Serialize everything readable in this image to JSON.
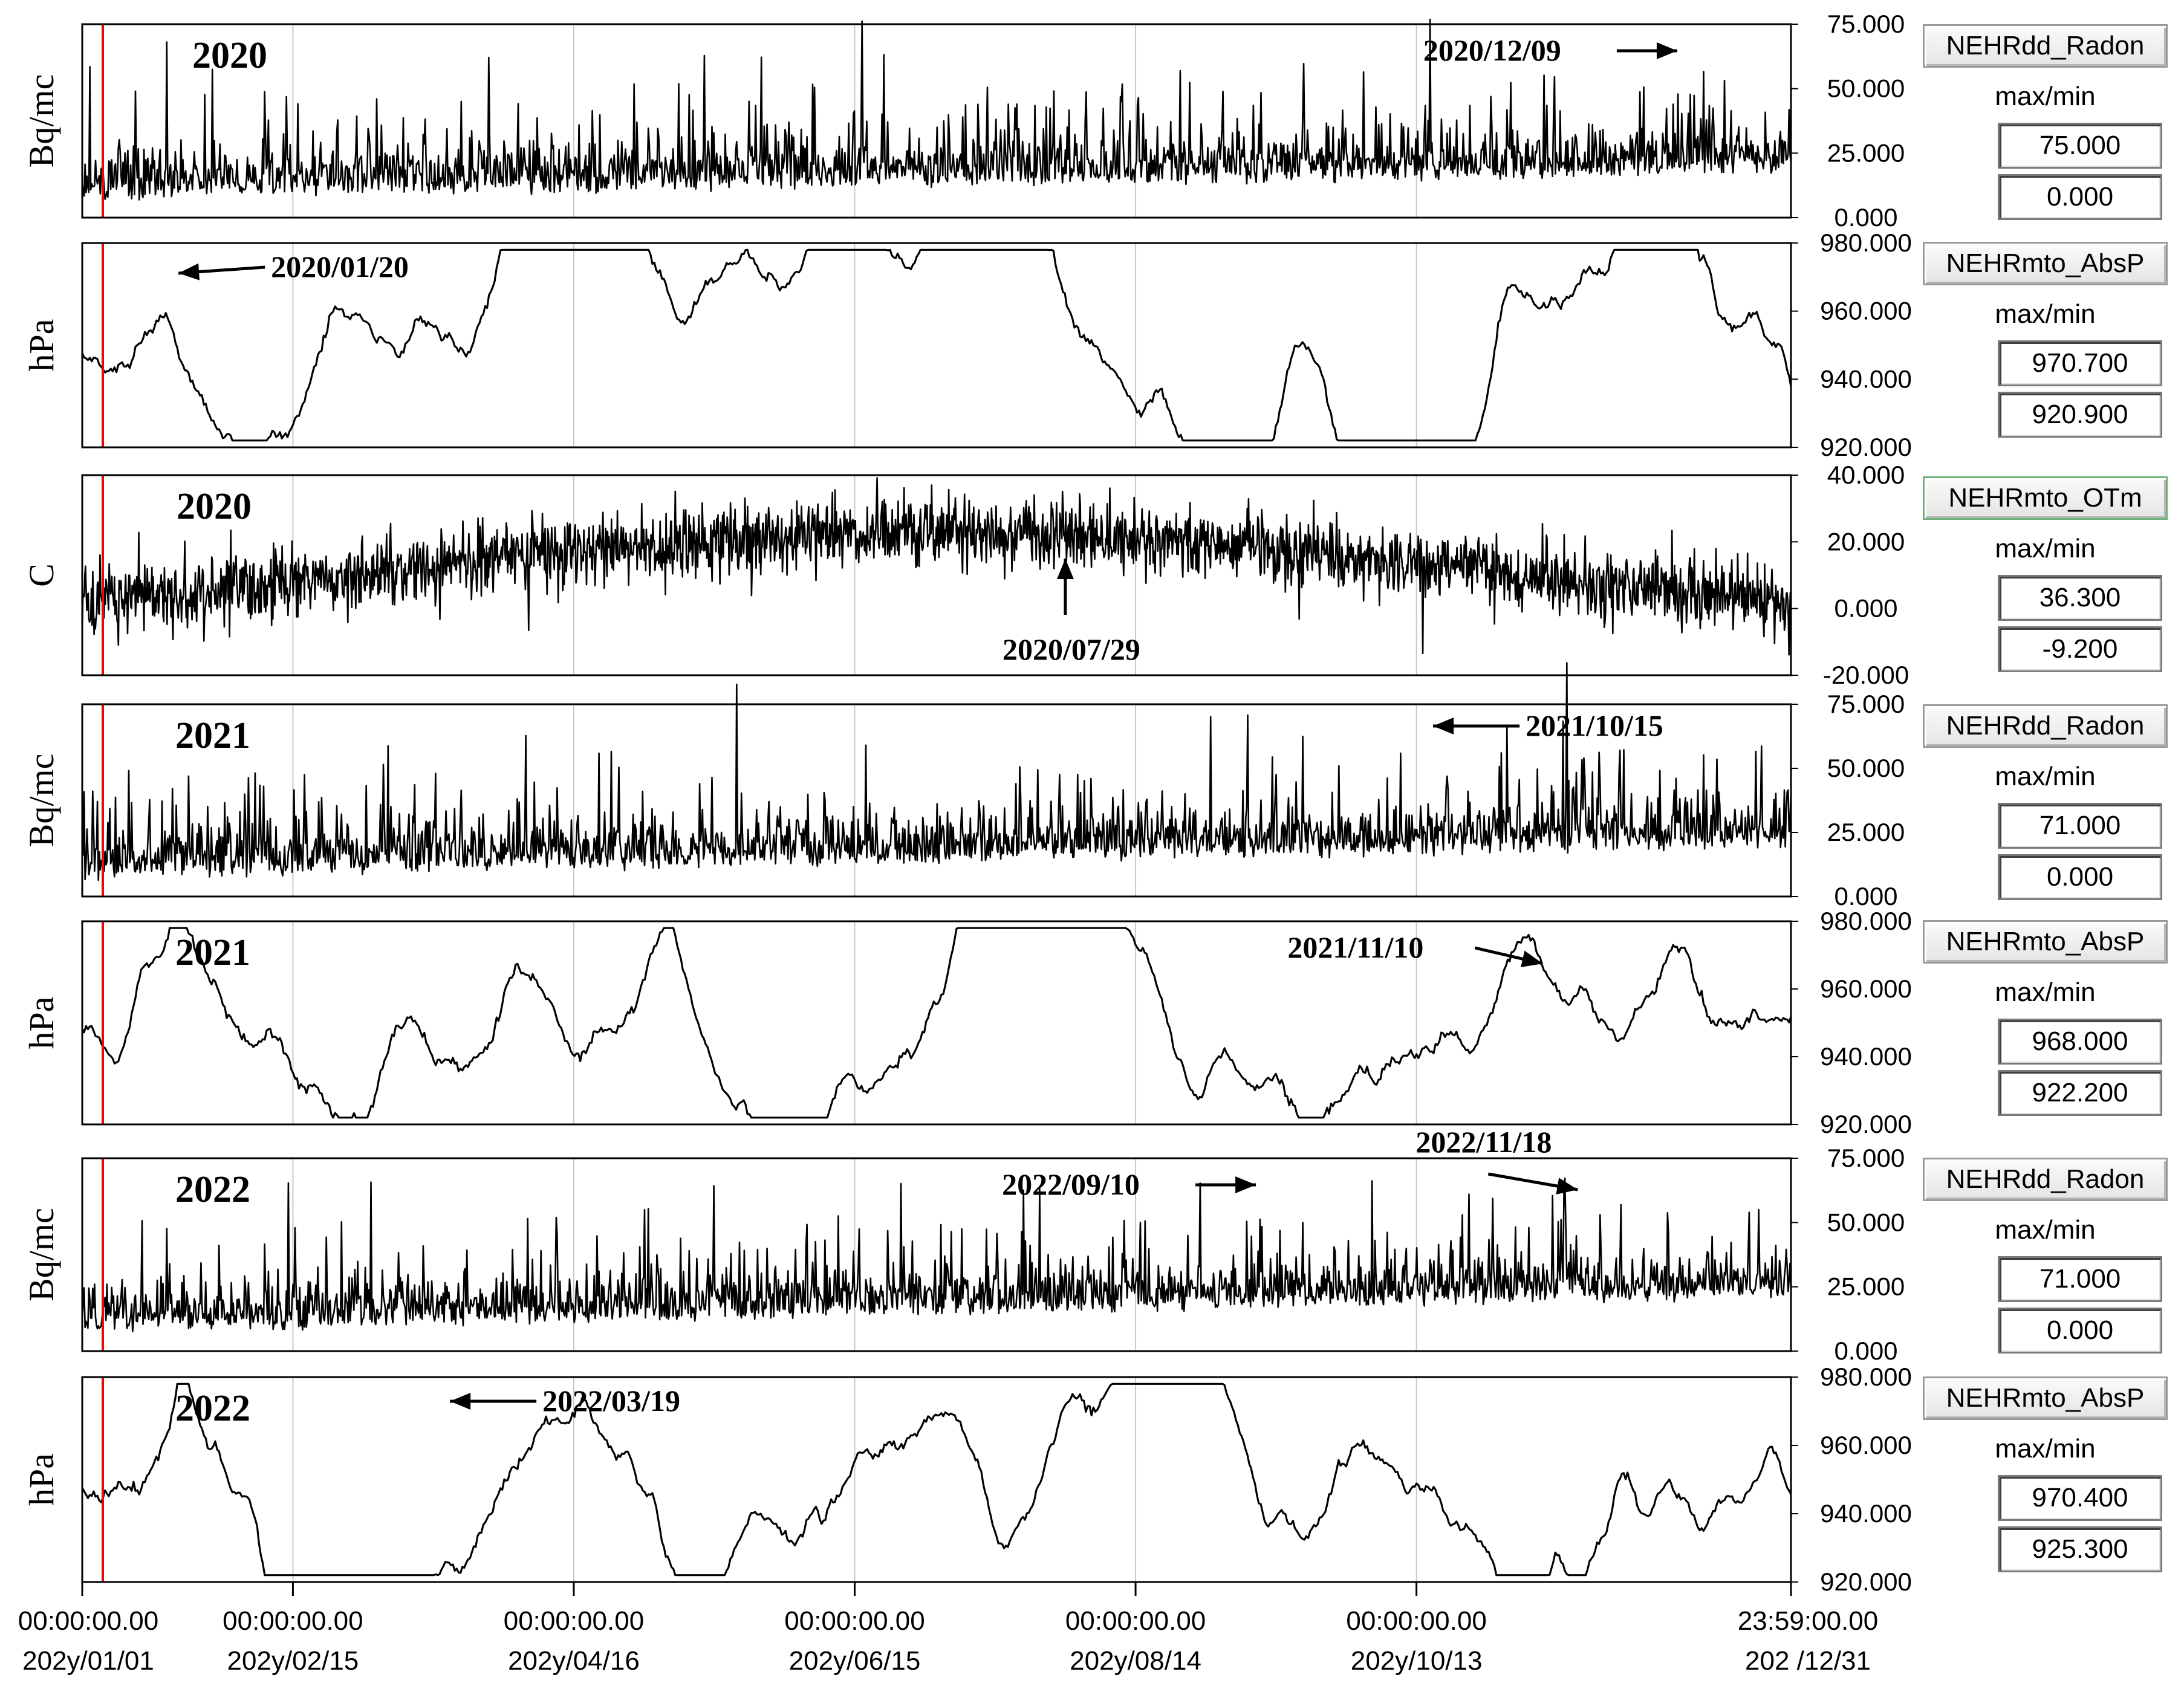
{
  "panels": [
    {
      "ylabel": "Bq/mc",
      "year": "2020",
      "ymax": 75,
      "ymin": 0,
      "ticks": [
        "75.000",
        "50.000",
        "25.000",
        "0.000"
      ],
      "kind": "radon",
      "seed": 11,
      "channel": "NEHRdd_Radon",
      "max": "75.000",
      "min": "0.000",
      "trend": 0.25,
      "annotations": [
        {
          "text": "2020/12/09",
          "date": 342,
          "arrow": "right"
        }
      ]
    },
    {
      "ylabel": "hPa",
      "year": "",
      "ymax": 980,
      "ymin": 920,
      "ticks": [
        "980.000",
        "960.000",
        "940.000",
        "920.000"
      ],
      "kind": "pressure",
      "seed": 23,
      "channel": "NEHRmto_AbsP",
      "max": "970.700",
      "min": "920.900",
      "trend": 0,
      "annotations": [
        {
          "text": "2020/01/20",
          "date": 19,
          "arrow": "left"
        }
      ]
    },
    {
      "ylabel": "C",
      "year": "2020",
      "ymax": 40,
      "ymin": -20,
      "ticks": [
        "40.000",
        "20.000",
        "0.000",
        "-20.000"
      ],
      "kind": "temp",
      "seed": 37,
      "channel": "NEHRmto_OTm",
      "max": "36.300",
      "min": "-9.200",
      "trend": 0,
      "annotations": [
        {
          "text": "2020/07/29",
          "date": 210,
          "arrow": "up"
        }
      ]
    },
    {
      "ylabel": "Bq/mc",
      "year": "2021",
      "ymax": 75,
      "ymin": 0,
      "ticks": [
        "75.000",
        "50.000",
        "25.000",
        "0.000"
      ],
      "kind": "radon",
      "seed": 53,
      "channel": "NEHRdd_Radon",
      "max": "71.000",
      "min": "0.000",
      "trend": 0.3,
      "annotations": [
        {
          "text": "2021/10/15",
          "date": 287,
          "arrow": "left"
        }
      ]
    },
    {
      "ylabel": "hPa",
      "year": "2021",
      "ymax": 980,
      "ymin": 920,
      "ticks": [
        "980.000",
        "960.000",
        "940.000",
        "920.000"
      ],
      "kind": "pressure",
      "seed": 71,
      "channel": "NEHRmto_AbsP",
      "max": "968.000",
      "min": "922.200",
      "trend": 0,
      "annotations": [
        {
          "text": "2021/11/10",
          "date": 313,
          "arrow": "right"
        }
      ]
    },
    {
      "ylabel": "Bq/mc",
      "year": "2022",
      "ymax": 75,
      "ymin": 0,
      "ticks": [
        "75.000",
        "50.000",
        "25.000",
        "0.000"
      ],
      "kind": "radon",
      "seed": 89,
      "channel": "NEHRdd_Radon",
      "max": "71.000",
      "min": "0.000",
      "trend": 0.35,
      "annotations": [
        {
          "text": "2022/09/10",
          "date": 252,
          "arrow": "right"
        },
        {
          "text": "2022/11/18",
          "date": 321,
          "arrow": "right"
        }
      ]
    },
    {
      "ylabel": "hPa",
      "year": "2022",
      "ymax": 980,
      "ymin": 920,
      "ticks": [
        "980.000",
        "960.000",
        "940.000",
        "920.000"
      ],
      "kind": "pressure",
      "seed": 97,
      "channel": "NEHRmto_AbsP",
      "max": "970.400",
      "min": "925.300",
      "trend": 0,
      "annotations": [
        {
          "text": "2022/03/19",
          "date": 77,
          "arrow": "left"
        }
      ]
    }
  ],
  "panel_label": "max/min",
  "xaxis": {
    "ticks": [
      {
        "date": 0,
        "time": "00:00:00.00",
        "label": "202y/01/01"
      },
      {
        "date": 45,
        "time": "00:00:00.00",
        "label": "202y/02/15"
      },
      {
        "date": 105,
        "time": "00:00:00.00",
        "label": "202y/04/16"
      },
      {
        "date": 165,
        "time": "00:00:00.00",
        "label": "202y/06/15"
      },
      {
        "date": 225,
        "time": "00:00:00.00",
        "label": "202y/08/14"
      },
      {
        "date": 285,
        "time": "00:00:00.00",
        "label": "202y/10/13"
      },
      {
        "date": 365,
        "time": "23:59:00.00",
        "label": "202  /12/31"
      }
    ]
  },
  "chart_data": {
    "type": "line",
    "x_unit": "day of year",
    "series": [
      {
        "name": "NEHRdd_Radon",
        "max": 75.0,
        "min": 0.0
      },
      {
        "name": "NEHRmto_AbsP",
        "max": 970.7,
        "min": 920.9
      },
      {
        "name": "NEHRmto_OTm",
        "max": 36.3,
        "min": -9.2
      },
      {
        "name": "NEHRdd_Radon",
        "max": 71.0,
        "min": 0.0
      },
      {
        "name": "NEHRmto_AbsP",
        "max": 968.0,
        "min": 922.2
      },
      {
        "name": "NEHRdd_Radon",
        "max": 71.0,
        "min": 0.0
      },
      {
        "name": "NEHRmto_AbsP",
        "max": 970.4,
        "min": 925.3
      }
    ],
    "colors": {
      "line": "#000000",
      "marker": "#ff0000",
      "grid": "#c8c8c8"
    }
  }
}
